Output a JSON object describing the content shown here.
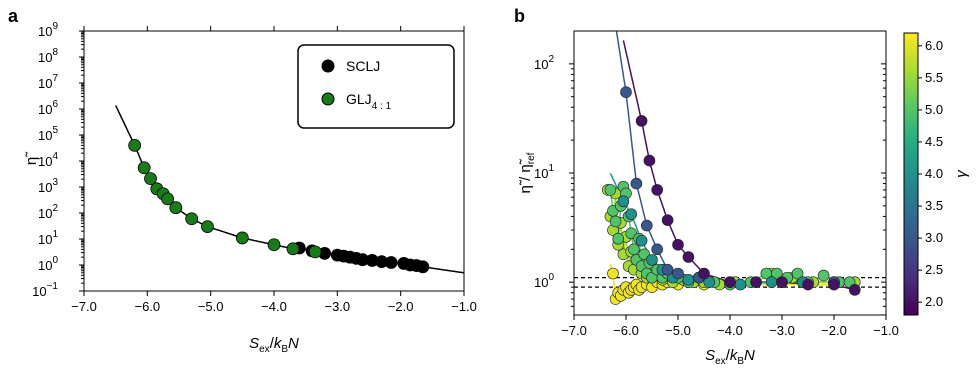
{
  "figure": {
    "panel_a_label": "a",
    "panel_b_label": "b"
  },
  "chart_data": [
    {
      "id": "panel-a",
      "type": "scatter",
      "title": "",
      "xlabel_parts": {
        "S": "S",
        "ex": "ex",
        "slash": "/",
        "k": "k",
        "B": "B",
        "N": "N"
      },
      "ylabel": "η̃",
      "xlim": [
        -7.0,
        -1.0
      ],
      "ylim_log10": [
        -1,
        9
      ],
      "y_scale": "log",
      "x_ticks": [
        -7.0,
        -6.0,
        -5.0,
        -4.0,
        -3.0,
        -2.0,
        -1.0
      ],
      "x_tick_labels": [
        "−7.0",
        "−6.0",
        "−5.0",
        "−4.0",
        "−3.0",
        "−2.0",
        "−1.0"
      ],
      "y_ticks_log10": [
        -1,
        0,
        1,
        2,
        3,
        4,
        5,
        6,
        7,
        8,
        9
      ],
      "y_tick_labels": [
        "−1",
        "0",
        "1",
        "2",
        "3",
        "4",
        "5",
        "6",
        "7",
        "8",
        "9"
      ],
      "y_tick_base": "10",
      "legend_position": "top-right",
      "series": [
        {
          "name": "SCLJ",
          "color": "#000000",
          "points": [
            [
              -3.6,
              4.5
            ],
            [
              -3.4,
              3.5
            ],
            [
              -3.2,
              2.8
            ],
            [
              -3.0,
              2.4
            ],
            [
              -2.9,
              2.2
            ],
            [
              -2.8,
              2.0
            ],
            [
              -2.7,
              1.8
            ],
            [
              -2.6,
              1.6
            ],
            [
              -2.45,
              1.5
            ],
            [
              -2.3,
              1.35
            ],
            [
              -2.15,
              1.25
            ],
            [
              -1.95,
              1.15
            ],
            [
              -1.85,
              1.0
            ],
            [
              -1.75,
              0.95
            ],
            [
              -1.65,
              0.85
            ]
          ]
        },
        {
          "name": "GLJ",
          "name_sub": "4 : 1",
          "color": "#1a7a1a",
          "points": [
            [
              -6.2,
              40000
            ],
            [
              -6.05,
              5500
            ],
            [
              -5.95,
              2100
            ],
            [
              -5.85,
              850
            ],
            [
              -5.75,
              550
            ],
            [
              -5.68,
              350
            ],
            [
              -5.55,
              160
            ],
            [
              -5.3,
              60
            ],
            [
              -5.05,
              30
            ],
            [
              -4.5,
              11
            ],
            [
              -4.0,
              6
            ],
            [
              -3.7,
              4.2
            ],
            [
              -3.35,
              3.2
            ]
          ]
        }
      ],
      "fit_curve": {
        "x_start": -6.5,
        "x_end": -1.0
      }
    },
    {
      "id": "panel-b",
      "type": "scatter",
      "title": "",
      "xlabel_parts": {
        "S": "S",
        "ex": "ex",
        "slash": "/",
        "k": "k",
        "B": "B",
        "N": "N"
      },
      "ylabel_parts": {
        "eta": "η̃",
        "slash": " / ",
        "eta2": "η̃",
        "ref": "ref"
      },
      "xlim": [
        -7.0,
        -1.0
      ],
      "ylim_log10": [
        -0.301,
        2.301
      ],
      "y_scale": "log",
      "x_ticks": [
        -7.0,
        -6.0,
        -5.0,
        -4.0,
        -3.0,
        -2.0,
        -1.0
      ],
      "x_tick_labels": [
        "−7.0",
        "−6.0",
        "−5.0",
        "−4.0",
        "−3.0",
        "−2.0",
        "−1.0"
      ],
      "y_ticks_log10": [
        0,
        1,
        2
      ],
      "y_tick_labels": [
        "0",
        "1",
        "2"
      ],
      "y_tick_base": "10",
      "reference_lines": [
        0.9,
        1.1
      ],
      "colorbar": {
        "label": "γ",
        "range": [
          1.8,
          6.2
        ],
        "ticks": [
          2.0,
          2.5,
          3.0,
          3.5,
          4.0,
          4.5,
          5.0,
          5.5,
          6.0
        ],
        "tick_labels": [
          "2.0",
          "2.5",
          "3.0",
          "3.5",
          "4.0",
          "4.5",
          "5.0",
          "5.5",
          "6.0"
        ],
        "colormap": "viridis"
      },
      "series": [
        {
          "gamma": 2.0,
          "points": [
            [
              -5.7,
              30
            ],
            [
              -5.55,
              13
            ],
            [
              -5.4,
              7
            ],
            [
              -5.2,
              3.7
            ],
            [
              -5.0,
              2.2
            ],
            [
              -4.8,
              1.7
            ],
            [
              -4.5,
              1.2
            ],
            [
              -4.0,
              1.0
            ],
            [
              -3.5,
              1.0
            ],
            [
              -3.0,
              1.0
            ],
            [
              -2.5,
              0.95
            ],
            [
              -2.0,
              0.95
            ],
            [
              -1.6,
              0.85
            ]
          ],
          "curve": [
            -6.05,
            -1.5
          ]
        },
        {
          "gamma": 3.0,
          "points": [
            [
              -6.0,
              55
            ],
            [
              -5.8,
              8
            ],
            [
              -5.6,
              3.3
            ],
            [
              -5.4,
              2.0
            ],
            [
              -5.2,
              1.3
            ],
            [
              -5.0,
              1.2
            ],
            [
              -4.6,
              1.1
            ],
            [
              -4.0,
              1.0
            ],
            [
              -3.0,
              1.0
            ],
            [
              -2.0,
              1.0
            ]
          ],
          "curve": [
            -6.3,
            -1.5
          ]
        },
        {
          "gamma": 4.0,
          "points": [
            [
              -6.05,
              5.5
            ],
            [
              -5.9,
              4.2
            ],
            [
              -5.7,
              2.4
            ],
            [
              -5.5,
              1.6
            ],
            [
              -5.3,
              1.3
            ],
            [
              -5.1,
              1.1
            ],
            [
              -4.8,
              1.05
            ],
            [
              -4.4,
              1.0
            ],
            [
              -3.8,
              0.95
            ],
            [
              -3.2,
              1.0
            ],
            [
              -2.6,
              1.0
            ],
            [
              -2.0,
              1.0
            ]
          ],
          "curve": [
            -6.3,
            -1.5
          ]
        },
        {
          "gamma": 5.0,
          "points": [
            [
              -6.3,
              7
            ],
            [
              -6.25,
              4.5
            ],
            [
              -6.2,
              3.6
            ],
            [
              -6.15,
              2.5
            ],
            [
              -6.1,
              5
            ],
            [
              -6.05,
              7.5
            ],
            [
              -6.0,
              6.5
            ],
            [
              -5.95,
              4
            ],
            [
              -5.9,
              2.8
            ],
            [
              -5.85,
              2.0
            ],
            [
              -5.8,
              1.6
            ],
            [
              -5.75,
              2.5
            ],
            [
              -5.7,
              1.4
            ],
            [
              -5.65,
              1.8
            ],
            [
              -5.6,
              1.2
            ],
            [
              -5.55,
              1.5
            ],
            [
              -5.5,
              1.1
            ],
            [
              -5.4,
              1.3
            ],
            [
              -5.3,
              1.1
            ],
            [
              -5.2,
              1.2
            ],
            [
              -5.0,
              1.1
            ],
            [
              -4.8,
              1.0
            ],
            [
              -4.6,
              1.1
            ],
            [
              -4.3,
              1.0
            ],
            [
              -4.0,
              0.95
            ],
            [
              -3.6,
              1.0
            ],
            [
              -3.3,
              1.2
            ],
            [
              -3.1,
              1.2
            ],
            [
              -2.9,
              1.1
            ],
            [
              -2.7,
              1.2
            ],
            [
              -2.5,
              1.0
            ],
            [
              -2.2,
              1.15
            ],
            [
              -1.9,
              1.0
            ],
            [
              -1.7,
              1.0
            ]
          ],
          "curve": [
            -6.3,
            -1.5
          ]
        },
        {
          "gamma": 5.6,
          "points": [
            [
              -6.35,
              7
            ],
            [
              -6.3,
              4
            ],
            [
              -6.25,
              3
            ],
            [
              -6.2,
              6.5
            ],
            [
              -6.15,
              2.2
            ],
            [
              -6.1,
              3.5
            ],
            [
              -6.05,
              1.8
            ],
            [
              -6.0,
              2.6
            ],
            [
              -5.95,
              1.4
            ],
            [
              -5.9,
              1.9
            ],
            [
              -5.85,
              1.3
            ],
            [
              -5.8,
              1.6
            ],
            [
              -5.7,
              1.2
            ],
            [
              -5.6,
              1.1
            ],
            [
              -5.5,
              1.15
            ],
            [
              -5.3,
              1.05
            ],
            [
              -5.1,
              1.0
            ],
            [
              -4.9,
              1.05
            ],
            [
              -4.7,
              1.0
            ],
            [
              -4.5,
              1.0
            ],
            [
              -4.2,
              0.95
            ],
            [
              -3.9,
              1.0
            ],
            [
              -3.5,
              1.0
            ],
            [
              -3.2,
              1.2
            ],
            [
              -2.8,
              1.1
            ],
            [
              -2.4,
              1.0
            ],
            [
              -2.0,
              1.0
            ],
            [
              -1.6,
              1.0
            ]
          ],
          "curve": [
            -6.3,
            -1.5
          ]
        },
        {
          "gamma": 6.1,
          "points": [
            [
              -6.25,
              1.2
            ],
            [
              -6.2,
              0.7
            ],
            [
              -6.15,
              0.8
            ],
            [
              -6.1,
              0.75
            ],
            [
              -6.05,
              0.85
            ],
            [
              -6.0,
              0.9
            ],
            [
              -5.95,
              0.8
            ],
            [
              -5.9,
              0.85
            ],
            [
              -5.85,
              0.9
            ],
            [
              -5.8,
              0.95
            ],
            [
              -5.75,
              0.85
            ],
            [
              -5.7,
              0.9
            ],
            [
              -5.6,
              0.95
            ],
            [
              -5.5,
              0.9
            ],
            [
              -5.4,
              1.0
            ],
            [
              -5.3,
              0.95
            ],
            [
              -5.2,
              1.0
            ],
            [
              -5.0,
              0.95
            ],
            [
              -4.8,
              1.0
            ],
            [
              -4.5,
              0.95
            ]
          ],
          "curve": [
            -6.3,
            -1.5
          ]
        }
      ]
    }
  ]
}
